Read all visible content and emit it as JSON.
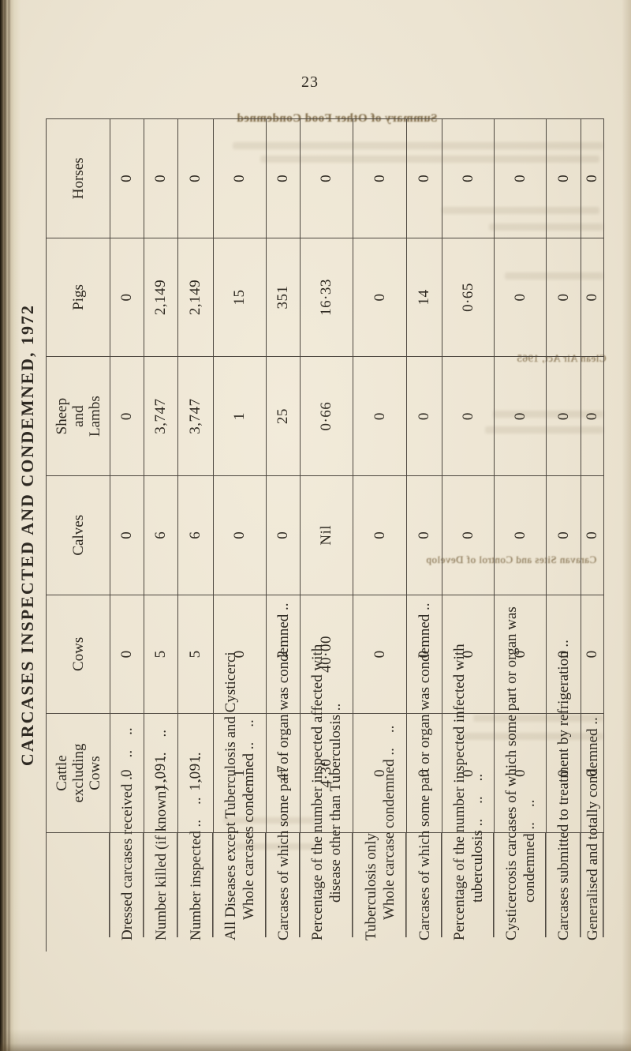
{
  "page_number": "23",
  "table": {
    "title": "CARCASES INSPECTED AND CONDEMNED, 1972",
    "column_headers": [
      {
        "lines": [
          ""
        ]
      },
      {
        "lines": [
          "Cattle",
          "excluding",
          "Cows"
        ]
      },
      {
        "lines": [
          "Cows"
        ]
      },
      {
        "lines": [
          "Calves"
        ]
      },
      {
        "lines": [
          "Sheep",
          "and",
          "Lambs"
        ]
      },
      {
        "lines": [
          "Pigs"
        ]
      },
      {
        "lines": [
          "Horses"
        ]
      }
    ],
    "rows": [
      {
        "label_lines": [
          {
            "t": "Dressed carcases received .. .. ..",
            "ind": 0
          }
        ],
        "values": [
          "0",
          "0",
          "0",
          "0",
          "0",
          "0"
        ]
      },
      {
        "label_lines": [
          {
            "t": "Number killed (if known) .. .. ..",
            "ind": 0
          }
        ],
        "values": [
          "1,091",
          "5",
          "6",
          "3,747",
          "2,149",
          "0"
        ]
      },
      {
        "label_lines": [
          {
            "t": "Number inspected .. .. .. ..",
            "ind": 0
          }
        ],
        "values": [
          "1,091",
          "5",
          "6",
          "3,747",
          "2,149",
          "0"
        ]
      },
      {
        "label_lines": [
          {
            "t": "All Diseases except Tuberculosis and Cysticerci",
            "ind": 0
          },
          {
            "t": "Whole carcases condemned .. ..",
            "ind": 1
          }
        ],
        "values": [
          "1",
          "0",
          "0",
          "1",
          "15",
          "0"
        ]
      },
      {
        "label_lines": [
          {
            "t": "Carcases of which some part of organ was condemned ..",
            "ind": 0
          }
        ],
        "values": [
          "47",
          "2",
          "0",
          "25",
          "351",
          "0"
        ]
      },
      {
        "label_lines": [
          {
            "t": "Percentage of the number inspected affected with",
            "ind": 0
          },
          {
            "t": "disease other than Tuberculosis ..",
            "ind": 2
          }
        ],
        "values": [
          "4·30",
          "40·00",
          "Nil",
          "0·66",
          "16·33",
          "0"
        ]
      },
      {
        "label_lines": [
          {
            "t": "Tuberculosis only",
            "ind": 0
          },
          {
            "t": "Whole carcase condemned .. ..",
            "ind": 1
          }
        ],
        "values": [
          "0",
          "0",
          "0",
          "0",
          "0",
          "0"
        ]
      },
      {
        "label_lines": [
          {
            "t": "Carcases of which some part or organ was condemned ..",
            "ind": 0
          }
        ],
        "values": [
          "0",
          "0",
          "0",
          "0",
          "14",
          "0"
        ]
      },
      {
        "label_lines": [
          {
            "t": "Percentage of the number inspected infected with",
            "ind": 0
          },
          {
            "t": "tuberculosis .. .. ..",
            "ind": 2
          }
        ],
        "values": [
          "0",
          "0",
          "0",
          "0",
          "0·65",
          "0"
        ]
      },
      {
        "label_lines": [
          {
            "t": "Cysticercosis carcases of which some part or organ was",
            "ind": 0
          },
          {
            "t": "condemned .. ..",
            "ind": 2
          }
        ],
        "values": [
          "0",
          "0",
          "0",
          "0",
          "0",
          "0"
        ]
      },
      {
        "label_lines": [
          {
            "t": "Carcases submitted to treatment by refrigeration ..",
            "ind": 0
          }
        ],
        "values": [
          "0",
          "0",
          "0",
          "0",
          "0",
          "0"
        ]
      },
      {
        "label_lines": [
          {
            "t": "Generalised and totally condemned ..",
            "ind": 0
          }
        ],
        "values": [
          "0",
          "0",
          "0",
          "0",
          "0",
          "0"
        ]
      }
    ]
  },
  "bleedthrough": {
    "fragments": [
      {
        "text": "Summary of Other Food Condemned"
      },
      {
        "text": "Clean Air Act, 1965"
      },
      {
        "text": "Caravan Sites and Control of Develop"
      }
    ]
  },
  "colors": {
    "paper": "#ece4d2",
    "ink": "#2f2a22",
    "rule": "#4e4840"
  }
}
